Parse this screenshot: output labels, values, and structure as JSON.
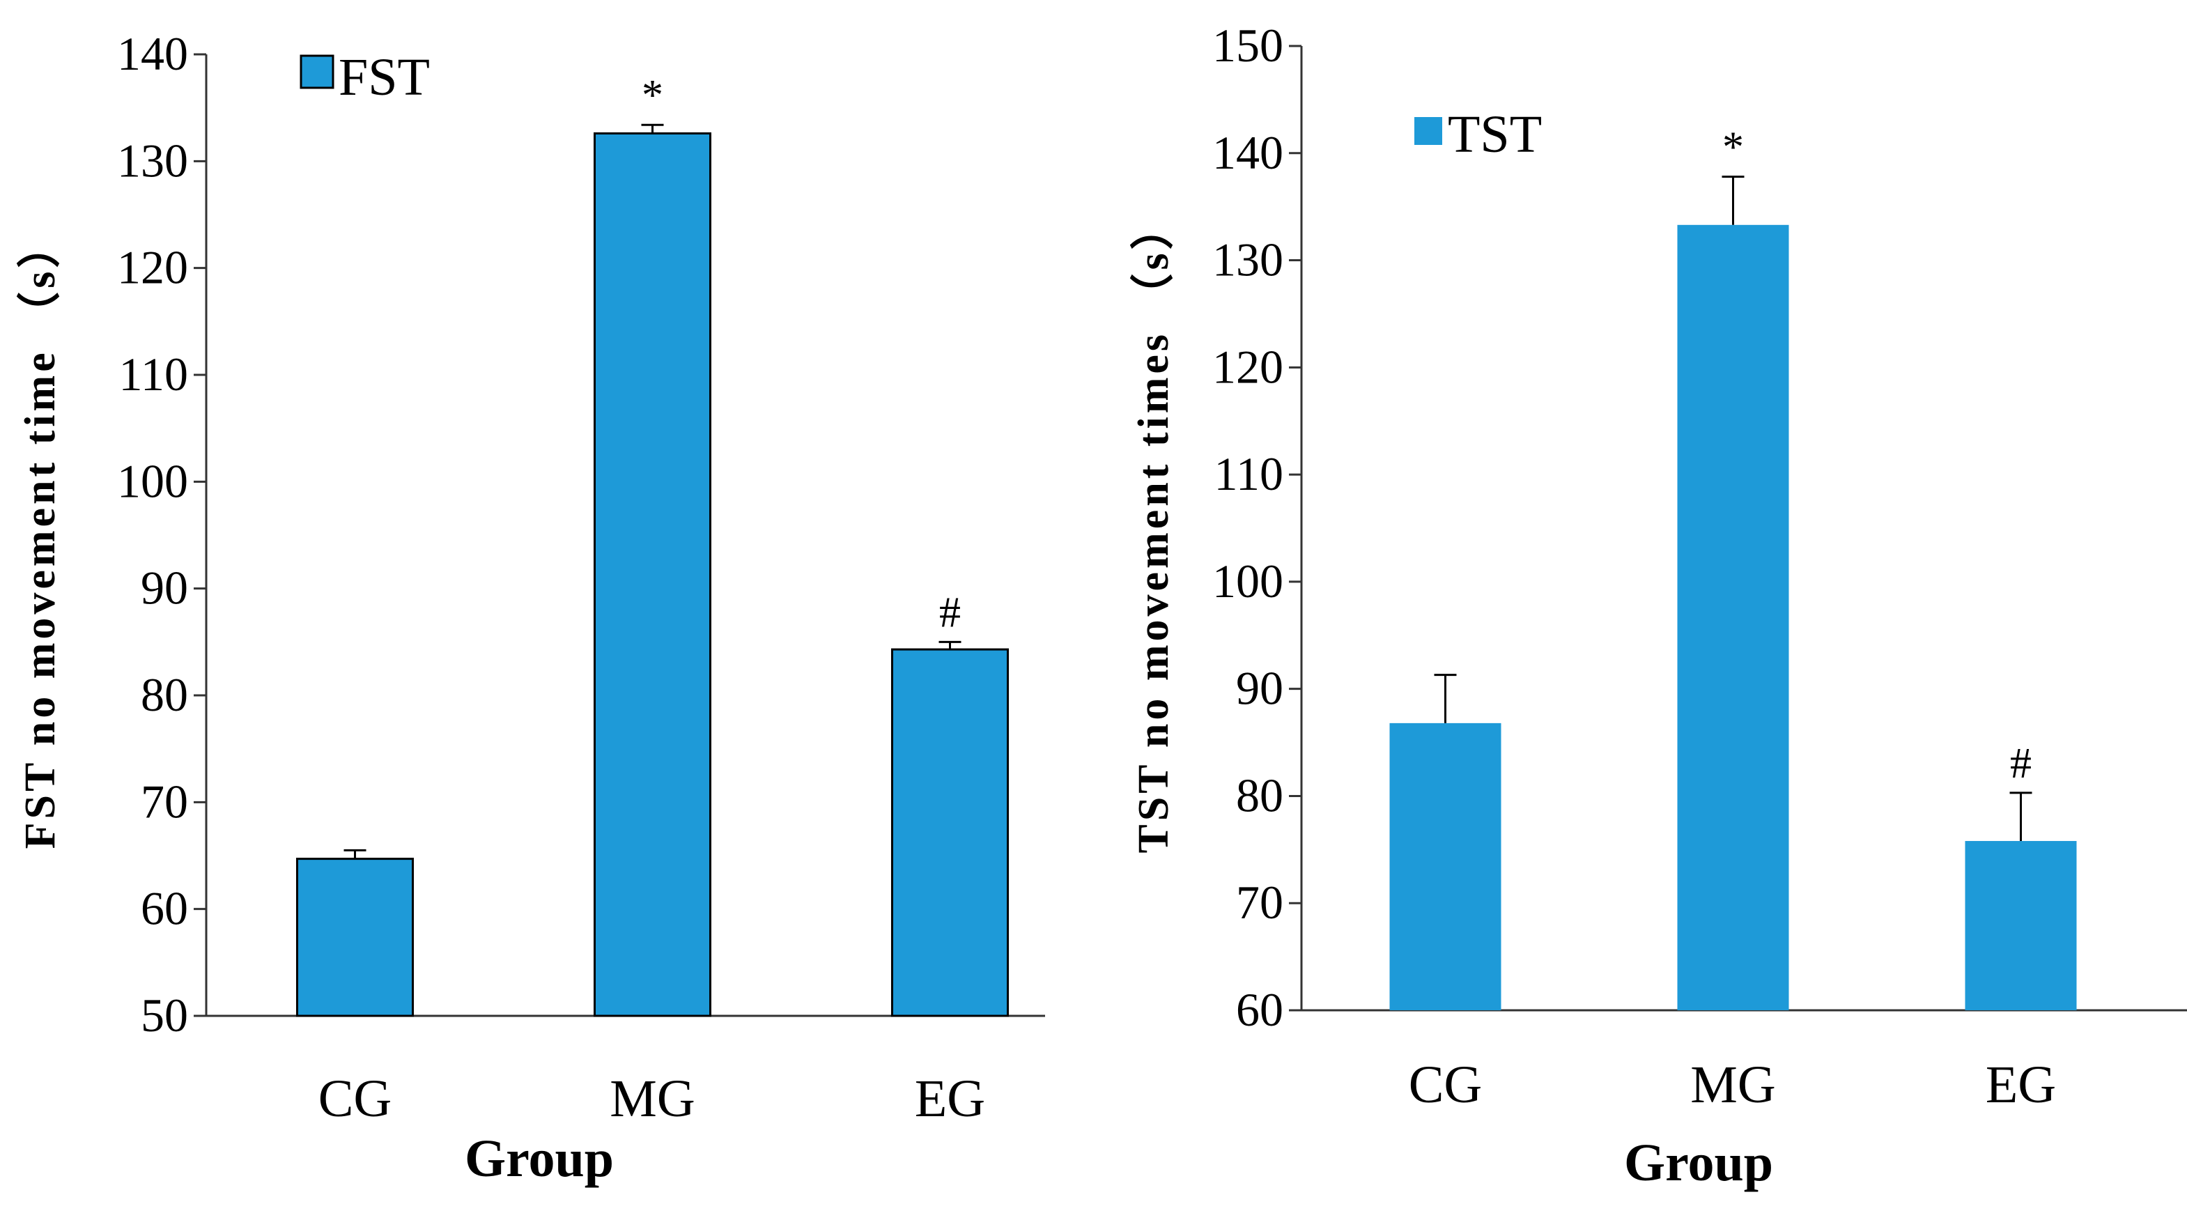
{
  "chart_data": [
    {
      "type": "bar",
      "title": "",
      "categories": [
        "CG",
        "MG",
        "EG"
      ],
      "values": [
        64.7,
        132.6,
        84.3
      ],
      "errors": [
        0.8,
        0.8,
        0.7
      ],
      "significance": [
        "",
        "*",
        "#"
      ],
      "series_name": "FST",
      "xlabel": "Group",
      "ylabel": "FST no movement time （s）",
      "ylim": [
        50,
        140
      ],
      "yticks": [
        50,
        60,
        70,
        80,
        90,
        100,
        110,
        120,
        130,
        140
      ],
      "color": "#1e9ad8",
      "bar_outline": true,
      "grid": false,
      "legend_position": "top-left"
    },
    {
      "type": "bar",
      "title": "",
      "categories": [
        "CG",
        "MG",
        "EG"
      ],
      "values": [
        86.8,
        133.3,
        75.8
      ],
      "errors": [
        4.5,
        4.5,
        4.5
      ],
      "significance": [
        "",
        "*",
        "#"
      ],
      "series_name": "TST",
      "xlabel": "Group",
      "ylabel": "TST no movement times （s）",
      "ylim": [
        60,
        150
      ],
      "yticks": [
        60,
        70,
        80,
        90,
        100,
        110,
        120,
        130,
        140,
        150
      ],
      "color": "#1e9ad8",
      "bar_outline": false,
      "grid": false,
      "legend_position": "top-left"
    }
  ]
}
